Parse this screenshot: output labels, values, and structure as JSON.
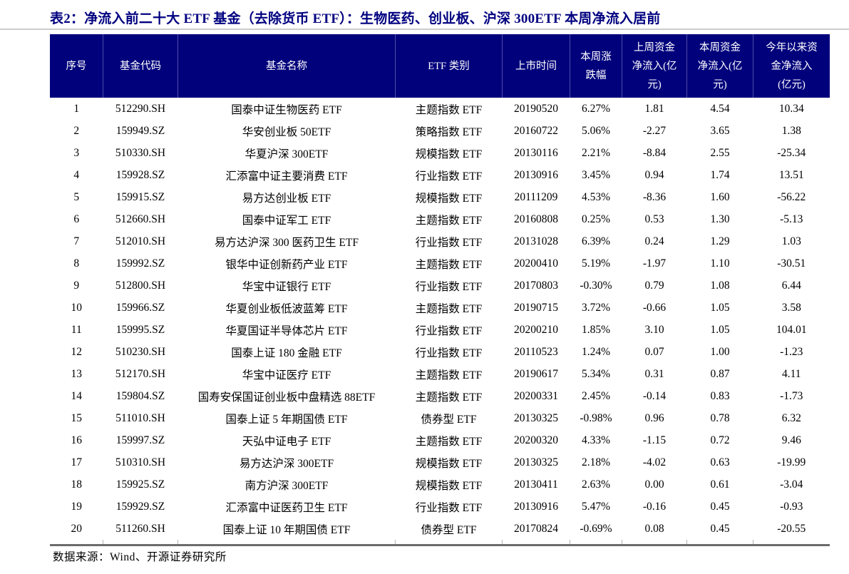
{
  "title": "表2：净流入前二十大 ETF 基金（去除货币 ETF）：生物医药、创业板、沪深 300ETF 本周净流入居前",
  "source_note": "数据来源：Wind、开源证券研究所",
  "colors": {
    "header_bg": "#01017c",
    "header_divider": "#4d4da6",
    "header_text": "#ffffff",
    "title_text": "#000080",
    "bottom_rule": "#6b6b6b",
    "title_rule": "#cccccc",
    "body_text": "#000000"
  },
  "table": {
    "columns": [
      "序号",
      "基金代码",
      "基金名称",
      "ETF 类别",
      "上市时间",
      "本周涨\n跌幅",
      "上周资金\n净流入(亿\n元)",
      "本周资金\n净流入(亿\n元)",
      "今年以来资\n金净流入\n(亿元)"
    ],
    "rows": [
      [
        "1",
        "512290.SH",
        "国泰中证生物医药 ETF",
        "主题指数 ETF",
        "20190520",
        "6.27%",
        "1.81",
        "4.54",
        "10.34"
      ],
      [
        "2",
        "159949.SZ",
        "华安创业板 50ETF",
        "策略指数 ETF",
        "20160722",
        "5.06%",
        "-2.27",
        "3.65",
        "1.38"
      ],
      [
        "3",
        "510330.SH",
        "华夏沪深 300ETF",
        "规模指数 ETF",
        "20130116",
        "2.21%",
        "-8.84",
        "2.55",
        "-25.34"
      ],
      [
        "4",
        "159928.SZ",
        "汇添富中证主要消费 ETF",
        "行业指数 ETF",
        "20130916",
        "3.45%",
        "0.94",
        "1.74",
        "13.51"
      ],
      [
        "5",
        "159915.SZ",
        "易方达创业板 ETF",
        "规模指数 ETF",
        "20111209",
        "4.53%",
        "-8.36",
        "1.60",
        "-56.22"
      ],
      [
        "6",
        "512660.SH",
        "国泰中证军工 ETF",
        "主题指数 ETF",
        "20160808",
        "0.25%",
        "0.53",
        "1.30",
        "-5.13"
      ],
      [
        "7",
        "512010.SH",
        "易方达沪深 300 医药卫生 ETF",
        "行业指数 ETF",
        "20131028",
        "6.39%",
        "0.24",
        "1.29",
        "1.03"
      ],
      [
        "8",
        "159992.SZ",
        "银华中证创新药产业 ETF",
        "主题指数 ETF",
        "20200410",
        "5.19%",
        "-1.97",
        "1.10",
        "-30.51"
      ],
      [
        "9",
        "512800.SH",
        "华宝中证银行 ETF",
        "行业指数 ETF",
        "20170803",
        "-0.30%",
        "0.79",
        "1.08",
        "6.44"
      ],
      [
        "10",
        "159966.SZ",
        "华夏创业板低波蓝筹 ETF",
        "主题指数 ETF",
        "20190715",
        "3.72%",
        "-0.66",
        "1.05",
        "3.58"
      ],
      [
        "11",
        "159995.SZ",
        "华夏国证半导体芯片 ETF",
        "行业指数 ETF",
        "20200210",
        "1.85%",
        "3.10",
        "1.05",
        "104.01"
      ],
      [
        "12",
        "510230.SH",
        "国泰上证 180 金融 ETF",
        "行业指数 ETF",
        "20110523",
        "1.24%",
        "0.07",
        "1.00",
        "-1.23"
      ],
      [
        "13",
        "512170.SH",
        "华宝中证医疗 ETF",
        "主题指数 ETF",
        "20190617",
        "5.34%",
        "0.31",
        "0.87",
        "4.11"
      ],
      [
        "14",
        "159804.SZ",
        "国寿安保国证创业板中盘精选 88ETF",
        "主题指数 ETF",
        "20200331",
        "2.45%",
        "-0.14",
        "0.83",
        "-1.73"
      ],
      [
        "15",
        "511010.SH",
        "国泰上证 5 年期国债 ETF",
        "债券型 ETF",
        "20130325",
        "-0.98%",
        "0.96",
        "0.78",
        "6.32"
      ],
      [
        "16",
        "159997.SZ",
        "天弘中证电子 ETF",
        "主题指数 ETF",
        "20200320",
        "4.33%",
        "-1.15",
        "0.72",
        "9.46"
      ],
      [
        "17",
        "510310.SH",
        "易方达沪深 300ETF",
        "规模指数 ETF",
        "20130325",
        "2.18%",
        "-4.02",
        "0.63",
        "-19.99"
      ],
      [
        "18",
        "159925.SZ",
        "南方沪深 300ETF",
        "规模指数 ETF",
        "20130411",
        "2.63%",
        "0.00",
        "0.61",
        "-3.04"
      ],
      [
        "19",
        "159929.SZ",
        "汇添富中证医药卫生 ETF",
        "行业指数 ETF",
        "20130916",
        "5.47%",
        "-0.16",
        "0.45",
        "-0.93"
      ],
      [
        "20",
        "511260.SH",
        "国泰上证 10 年期国债 ETF",
        "债券型 ETF",
        "20170824",
        "-0.69%",
        "0.08",
        "0.45",
        "-20.55"
      ]
    ]
  }
}
